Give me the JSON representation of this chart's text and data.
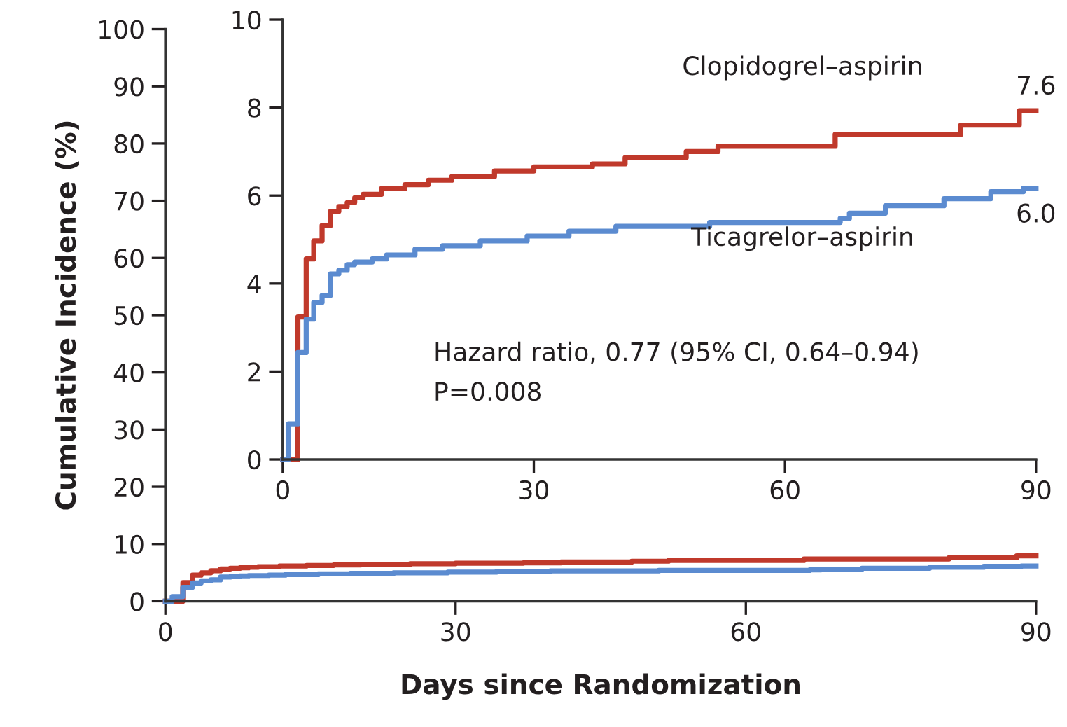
{
  "chart_data": [
    {
      "type": "step",
      "xlabel": "Days since Randomization",
      "ylabel": "Cumulative Incidence (%)",
      "xlim": [
        0,
        90
      ],
      "ylim": [
        0,
        100
      ],
      "xticks": [
        0,
        30,
        60,
        90
      ],
      "yticks": [
        0,
        10,
        20,
        30,
        40,
        50,
        60,
        70,
        80,
        90,
        100
      ],
      "grid": false,
      "legend": false,
      "series": [
        {
          "color": "#c0392b",
          "x": [
            0,
            1.8,
            1.81,
            2.8,
            3.7,
            4.7,
            5.7,
            6.7,
            7.7,
            8.6,
            9.6,
            11.8,
            14.6,
            17.4,
            20.2,
            25.3,
            30,
            37,
            40.9,
            48.2,
            52,
            66,
            81,
            88,
            90
          ],
          "values": [
            0,
            2.5,
            3.24,
            4.56,
            4.97,
            5.32,
            5.64,
            5.75,
            5.84,
            5.95,
            6.03,
            6.16,
            6.25,
            6.35,
            6.43,
            6.56,
            6.65,
            6.72,
            6.86,
            7.0,
            7.12,
            7.39,
            7.6,
            7.93,
            7.93
          ]
        },
        {
          "color": "#5b8bd0",
          "x": [
            0,
            0.7,
            1.8,
            2.8,
            3.7,
            4.7,
            5.7,
            6.7,
            7.7,
            8.6,
            10.7,
            12.4,
            15.8,
            19.1,
            23.6,
            29.2,
            34.2,
            39.8,
            51,
            66.6,
            67.7,
            72,
            79,
            84.6,
            88.5,
            90
          ],
          "values": [
            0,
            0.81,
            2.43,
            3.19,
            3.57,
            3.73,
            4.22,
            4.3,
            4.43,
            4.49,
            4.56,
            4.65,
            4.78,
            4.86,
            4.97,
            5.08,
            5.19,
            5.3,
            5.39,
            5.48,
            5.6,
            5.77,
            5.93,
            6.09,
            6.17,
            6.17
          ]
        }
      ]
    },
    {
      "type": "step",
      "xlim": [
        0,
        90
      ],
      "ylim": [
        0,
        10
      ],
      "xticks": [
        0,
        30,
        60,
        90
      ],
      "yticks": [
        0,
        2,
        4,
        6,
        8,
        10
      ],
      "grid": false,
      "legend": false,
      "series": [
        {
          "name": "Clopidogrel–aspirin",
          "color": "#c0392b",
          "x": [
            0,
            1.8,
            1.81,
            2.8,
            3.7,
            4.7,
            5.7,
            6.7,
            7.7,
            8.6,
            9.6,
            11.8,
            14.6,
            17.4,
            20.2,
            25.3,
            30,
            37,
            40.9,
            48.2,
            52,
            66,
            81,
            88,
            90
          ],
          "values": [
            0,
            2.5,
            3.24,
            4.56,
            4.97,
            5.32,
            5.64,
            5.75,
            5.84,
            5.95,
            6.03,
            6.16,
            6.25,
            6.35,
            6.43,
            6.56,
            6.65,
            6.72,
            6.86,
            7.0,
            7.12,
            7.39,
            7.6,
            7.93,
            7.93
          ]
        },
        {
          "name": "Ticagrelor–aspirin",
          "color": "#5b8bd0",
          "x": [
            0,
            0.7,
            1.8,
            2.8,
            3.7,
            4.7,
            5.7,
            6.7,
            7.7,
            8.6,
            10.7,
            12.4,
            15.8,
            19.1,
            23.6,
            29.2,
            34.2,
            39.8,
            51,
            66.6,
            67.7,
            72,
            79,
            84.6,
            88.5,
            90
          ],
          "values": [
            0,
            0.81,
            2.43,
            3.19,
            3.57,
            3.73,
            4.22,
            4.3,
            4.43,
            4.49,
            4.56,
            4.65,
            4.78,
            4.86,
            4.97,
            5.08,
            5.19,
            5.3,
            5.39,
            5.48,
            5.6,
            5.77,
            5.93,
            6.09,
            6.17,
            6.17
          ]
        }
      ],
      "annotations": [
        "Hazard ratio, 0.77 (95% CI, 0.64–0.94)",
        "P=0.008",
        {
          "text": "7.6",
          "x": 90,
          "y": 7.93
        },
        {
          "text": "6.0",
          "x": 90,
          "y": 6.17
        }
      ]
    }
  ]
}
